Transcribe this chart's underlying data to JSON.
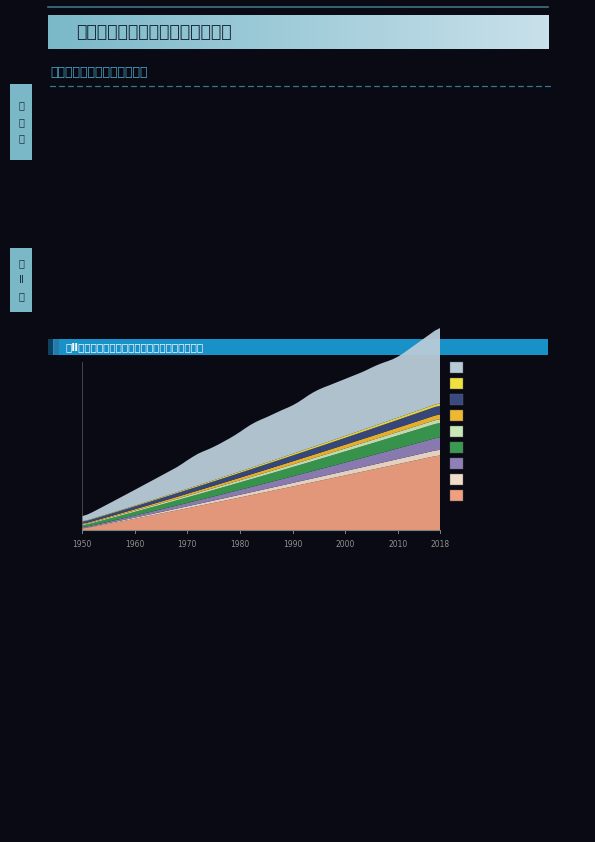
{
  "page_bg": "#0a0a14",
  "header_text": "第４節　水産業をめぐる国際情勢",
  "section_title": "（１）　世界の漁業・養殖業",
  "chart_title": "図Ⅱ－４－１　世界の漁業・養殖業生産量の推移",
  "tab1_text": "第\n１\n部",
  "tab2_text": "第\nⅡ\n章",
  "header_grad_left": "#7ab8c8",
  "header_grad_right": "#c8e0ea",
  "tab_color": "#7ab8c8",
  "chart_title_bar_color": "#1890c8",
  "section_title_color": "#48a8c8",
  "dot_color": "#48a8c8",
  "area_colors_bottom_to_top": [
    "#f0a080",
    "#f0dcc8",
    "#9080b8",
    "#3a9a50",
    "#c8e8b8",
    "#f0b830",
    "#3a4a80",
    "#f0e040",
    "#b8ccd8"
  ],
  "legend_colors_top_to_bottom": [
    "#b8ccd8",
    "#f0e040",
    "#3a4a80",
    "#f0b830",
    "#c8e8b8",
    "#3a9a50",
    "#9080b8",
    "#f0dcc8",
    "#f0a080"
  ],
  "x_ticks": [
    1950,
    1960,
    1970,
    1980,
    1990,
    2000,
    2010,
    2018
  ],
  "year_start": 1950,
  "year_end": 2018,
  "n_points": 69
}
